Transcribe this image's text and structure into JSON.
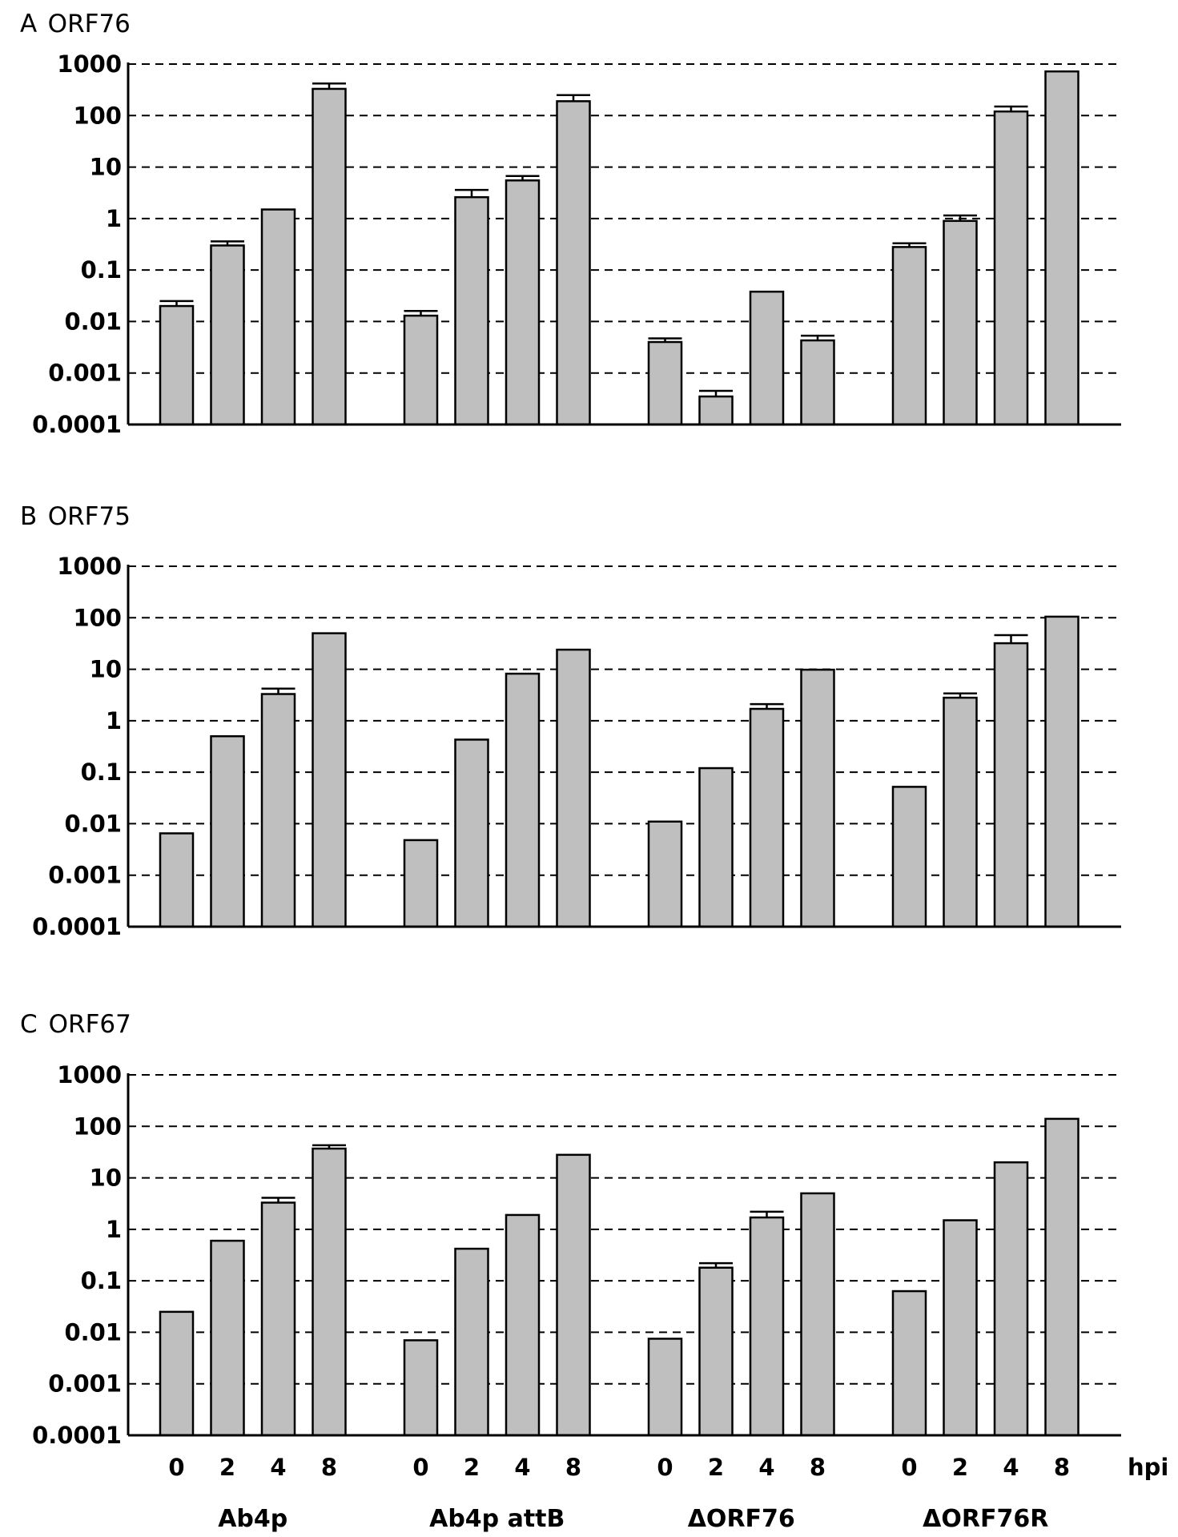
{
  "chart_data": [
    {
      "type": "bar",
      "panel_letter": "A",
      "title": "ORF76",
      "yscale": "log",
      "ylim": [
        0.0001,
        1000
      ],
      "yticks": [
        "1000",
        "100",
        "10",
        "1",
        "0.1",
        "0.01",
        "0.001",
        "0.0001"
      ],
      "grid": true,
      "groups": [
        {
          "name": "Ab4p",
          "categories": [
            "0",
            "2",
            "4",
            "8"
          ],
          "values": [
            0.02,
            0.3,
            1.5,
            330
          ],
          "errors": [
            0.005,
            0.06,
            0,
            90
          ]
        },
        {
          "name": "Ab4p attB",
          "categories": [
            "0",
            "2",
            "4",
            "8"
          ],
          "values": [
            0.013,
            2.6,
            5.5,
            190
          ],
          "errors": [
            0.003,
            1.0,
            1.2,
            60
          ]
        },
        {
          "name": "ΔORF76",
          "categories": [
            "0",
            "2",
            "4",
            "8"
          ],
          "values": [
            0.004,
            0.00035,
            0.038,
            0.0043
          ],
          "errors": [
            0.0007,
            0.0001,
            0,
            0.001
          ]
        },
        {
          "name": "ΔORF76R",
          "categories": [
            "0",
            "2",
            "4",
            "8"
          ],
          "values": [
            0.28,
            0.9,
            120,
            720
          ],
          "errors": [
            0.05,
            0.25,
            30,
            0
          ]
        }
      ]
    },
    {
      "type": "bar",
      "panel_letter": "B",
      "title": "ORF75",
      "yscale": "log",
      "ylim": [
        0.0001,
        1000
      ],
      "yticks": [
        "1000",
        "100",
        "10",
        "1",
        "0.1",
        "0.01",
        "0.001",
        "0.0001"
      ],
      "grid": true,
      "groups": [
        {
          "name": "Ab4p",
          "categories": [
            "0",
            "2",
            "4",
            "8"
          ],
          "values": [
            0.0065,
            0.5,
            3.3,
            50
          ],
          "errors": [
            0,
            0,
            0.9,
            0
          ]
        },
        {
          "name": "Ab4p attB",
          "categories": [
            "0",
            "2",
            "4",
            "8"
          ],
          "values": [
            0.0048,
            0.43,
            8.2,
            24
          ],
          "errors": [
            0,
            0,
            0,
            0
          ]
        },
        {
          "name": "ΔORF76",
          "categories": [
            "0",
            "2",
            "4",
            "8"
          ],
          "values": [
            0.011,
            0.12,
            1.7,
            9.8
          ],
          "errors": [
            0,
            0,
            0.4,
            0
          ]
        },
        {
          "name": "ΔORF76R",
          "categories": [
            "0",
            "2",
            "4",
            "8"
          ],
          "values": [
            0.052,
            2.8,
            32,
            105
          ],
          "errors": [
            0,
            0.6,
            14,
            0
          ]
        }
      ]
    },
    {
      "type": "bar",
      "panel_letter": "C",
      "title": "ORF67",
      "yscale": "log",
      "ylim": [
        0.0001,
        1000
      ],
      "yticks": [
        "1000",
        "100",
        "10",
        "1",
        "0.1",
        "0.01",
        "0.001",
        "0.0001"
      ],
      "grid": true,
      "groups": [
        {
          "name": "Ab4p",
          "categories": [
            "0",
            "2",
            "4",
            "8"
          ],
          "values": [
            0.025,
            0.6,
            3.3,
            37
          ],
          "errors": [
            0,
            0,
            0.8,
            6
          ]
        },
        {
          "name": "Ab4p attB",
          "categories": [
            "0",
            "2",
            "4",
            "8"
          ],
          "values": [
            0.007,
            0.42,
            1.9,
            28
          ],
          "errors": [
            0,
            0,
            0,
            0
          ]
        },
        {
          "name": "ΔORF76",
          "categories": [
            "0",
            "2",
            "4",
            "8"
          ],
          "values": [
            0.0075,
            0.18,
            1.7,
            5
          ],
          "errors": [
            0,
            0.04,
            0.5,
            0
          ]
        },
        {
          "name": "ΔORF76R",
          "categories": [
            "0",
            "2",
            "4",
            "8"
          ],
          "values": [
            0.063,
            1.5,
            20,
            140
          ],
          "errors": [
            0,
            0,
            0,
            0
          ]
        }
      ]
    }
  ],
  "x_axis": {
    "unit": "hpi",
    "tick_labels": [
      "0",
      "2",
      "4",
      "8"
    ],
    "group_labels": [
      "Ab4p",
      "Ab4p attB",
      "ΔORF76",
      "ΔORF76R"
    ]
  }
}
